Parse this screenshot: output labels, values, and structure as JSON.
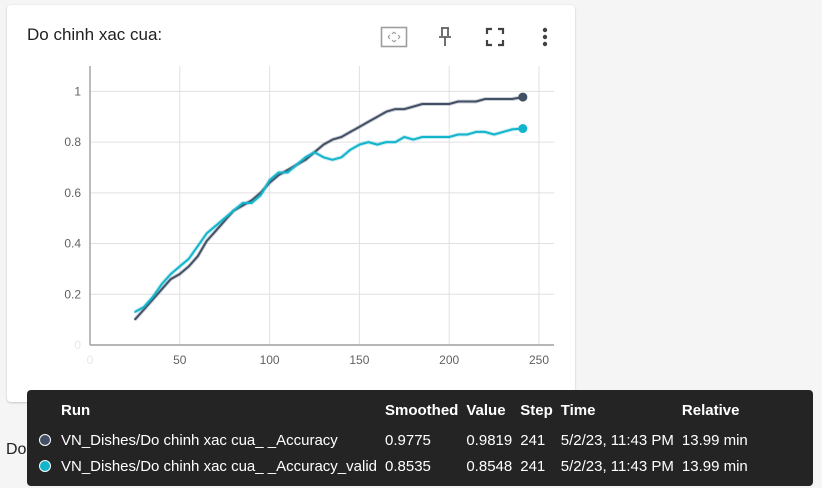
{
  "card": {
    "title": "Do chinh xac cua:",
    "icons": [
      "fit-domain-icon",
      "pin-icon",
      "fullscreen-icon",
      "more-vert-icon"
    ]
  },
  "below_title": "Do mat mat cua:",
  "chart_data": {
    "type": "line",
    "title": "Do chinh xac cua:",
    "xlabel": "",
    "ylabel": "",
    "xlim": [
      0,
      250
    ],
    "ylim": [
      0,
      1.1
    ],
    "x_ticks": [
      0,
      50,
      100,
      150,
      200,
      250
    ],
    "y_ticks": [
      0,
      0.2,
      0.4,
      0.6,
      0.8,
      1
    ],
    "grid": true,
    "series": [
      {
        "name": "VN_Dishes/Do chinh xac cua_ _Accuracy",
        "color": "#425066",
        "x": [
          25,
          30,
          35,
          40,
          45,
          50,
          55,
          60,
          65,
          70,
          75,
          80,
          85,
          90,
          95,
          100,
          105,
          110,
          115,
          120,
          125,
          130,
          135,
          140,
          145,
          150,
          155,
          160,
          165,
          170,
          175,
          180,
          185,
          190,
          195,
          200,
          205,
          210,
          215,
          220,
          225,
          230,
          235,
          241
        ],
        "values": [
          0.1,
          0.14,
          0.18,
          0.22,
          0.26,
          0.28,
          0.31,
          0.35,
          0.41,
          0.45,
          0.49,
          0.53,
          0.55,
          0.57,
          0.6,
          0.64,
          0.67,
          0.69,
          0.71,
          0.73,
          0.76,
          0.79,
          0.81,
          0.82,
          0.84,
          0.86,
          0.88,
          0.9,
          0.92,
          0.93,
          0.93,
          0.94,
          0.95,
          0.95,
          0.95,
          0.95,
          0.96,
          0.96,
          0.96,
          0.97,
          0.97,
          0.97,
          0.97,
          0.9775
        ]
      },
      {
        "name": "VN_Dishes/Do chinh xac cua_ _Accuracy_valid",
        "color": "#12b5cb",
        "x": [
          25,
          30,
          35,
          40,
          45,
          50,
          55,
          60,
          65,
          70,
          75,
          80,
          85,
          90,
          95,
          100,
          105,
          110,
          115,
          120,
          125,
          130,
          135,
          140,
          145,
          150,
          155,
          160,
          165,
          170,
          175,
          180,
          185,
          190,
          195,
          200,
          205,
          210,
          215,
          220,
          225,
          230,
          235,
          241
        ],
        "values": [
          0.13,
          0.15,
          0.19,
          0.24,
          0.28,
          0.31,
          0.34,
          0.39,
          0.44,
          0.47,
          0.5,
          0.53,
          0.56,
          0.56,
          0.59,
          0.65,
          0.68,
          0.68,
          0.71,
          0.74,
          0.76,
          0.74,
          0.73,
          0.74,
          0.77,
          0.79,
          0.8,
          0.79,
          0.8,
          0.8,
          0.82,
          0.81,
          0.82,
          0.82,
          0.82,
          0.82,
          0.83,
          0.83,
          0.84,
          0.84,
          0.83,
          0.84,
          0.85,
          0.8535
        ]
      }
    ]
  },
  "tooltip": {
    "headers": [
      "Run",
      "Smoothed",
      "Value",
      "Step",
      "Time",
      "Relative"
    ],
    "rows": [
      {
        "color": "#425066",
        "run": "VN_Dishes/Do chinh xac cua_ _Accuracy",
        "smoothed": "0.9775",
        "value": "0.9819",
        "step": "241",
        "time": "5/2/23, 11:43 PM",
        "relative": "13.99 min"
      },
      {
        "color": "#12b5cb",
        "run": "VN_Dishes/Do chinh xac cua_ _Accuracy_valid",
        "smoothed": "0.8535",
        "value": "0.8548",
        "step": "241",
        "time": "5/2/23, 11:43 PM",
        "relative": "13.99 min"
      }
    ]
  }
}
